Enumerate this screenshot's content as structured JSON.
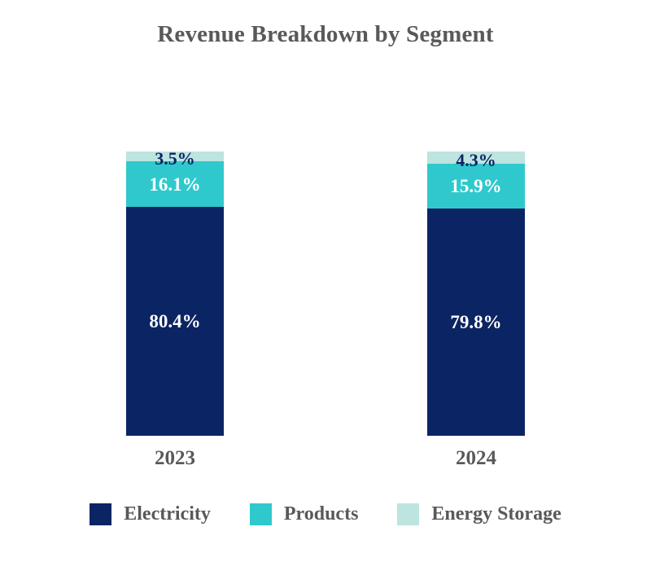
{
  "chart_data": {
    "type": "bar",
    "stacked": true,
    "title": "Revenue Breakdown by Segment",
    "categories": [
      "2023",
      "2024"
    ],
    "series": [
      {
        "name": "Electricity",
        "color": "#0b2463",
        "label_color": "#ffffff",
        "values": [
          80.4,
          79.8
        ],
        "labels": [
          "80.4%",
          "79.8%"
        ]
      },
      {
        "name": "Products",
        "color": "#2fc9cd",
        "label_color": "#ffffff",
        "values": [
          16.1,
          15.9
        ],
        "labels": [
          "16.1%",
          "15.9%"
        ]
      },
      {
        "name": "Energy Storage",
        "color": "#bde4df",
        "label_color": "#0b2463",
        "values": [
          3.5,
          4.3
        ],
        "labels": [
          "3.5%",
          "4.3%"
        ]
      }
    ],
    "ylim": [
      0,
      100
    ],
    "value_unit": "%",
    "grid": false,
    "legend_position": "bottom",
    "title_color": "#595959",
    "axis_label_color": "#595959",
    "background_color": "#ffffff"
  }
}
